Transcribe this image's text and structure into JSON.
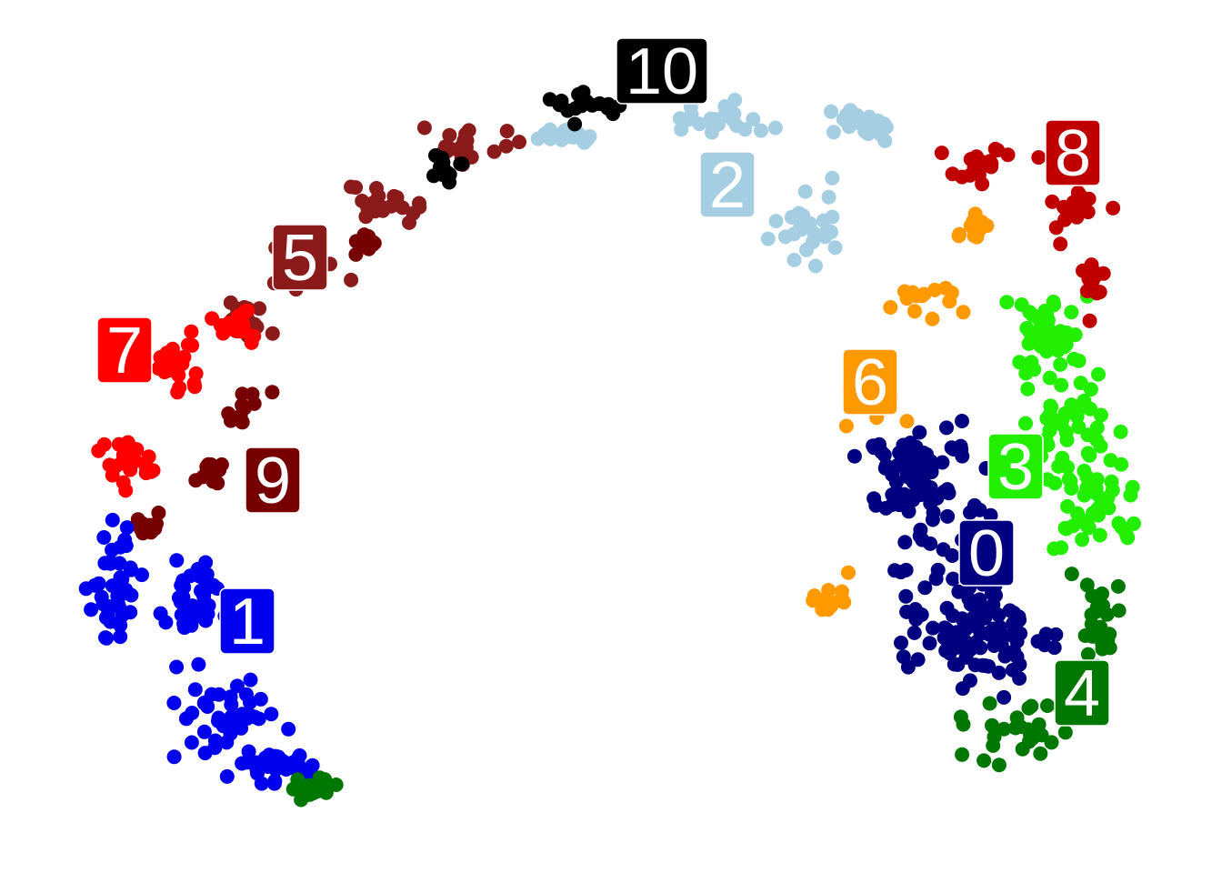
{
  "chart_data": {
    "type": "scatter",
    "title": "",
    "xlabel": "",
    "ylabel": "",
    "grid": false,
    "axes_visible": false,
    "legend": "none",
    "xlim": [
      0,
      1344
    ],
    "ylim": [
      0,
      960
    ],
    "clusters": [
      {
        "label": "0",
        "color": "#000080",
        "label_pos": [
          1085,
          608
        ],
        "n": 200,
        "blobs": [
          [
            1040,
            620,
            75,
            110
          ],
          [
            1080,
            700,
            60,
            45
          ],
          [
            1000,
            520,
            45,
            40
          ]
        ]
      },
      {
        "label": "1",
        "color": "#0000ee",
        "label_pos": [
          272,
          683
        ],
        "n": 160,
        "blobs": [
          [
            125,
            630,
            22,
            70
          ],
          [
            215,
            665,
            35,
            45
          ],
          [
            245,
            790,
            45,
            40
          ],
          [
            300,
            840,
            35,
            15
          ]
        ]
      },
      {
        "label": "2",
        "color": "#a6cee3",
        "label_pos": [
          800,
          203
        ],
        "n": 105,
        "blobs": [
          [
            790,
            130,
            50,
            15
          ],
          [
            890,
            240,
            45,
            40
          ],
          [
            955,
            140,
            35,
            15
          ],
          [
            620,
            150,
            30,
            8
          ]
        ]
      },
      {
        "label": "3",
        "color": "#22ee00",
        "label_pos": [
          1117,
          513
        ],
        "n": 125,
        "blobs": [
          [
            1150,
            370,
            35,
            40
          ],
          [
            1175,
            470,
            45,
            55
          ],
          [
            1200,
            560,
            45,
            50
          ]
        ]
      },
      {
        "label": "4",
        "color": "#007700",
        "label_pos": [
          1190,
          762
        ],
        "n": 85,
        "blobs": [
          [
            1120,
            800,
            55,
            40
          ],
          [
            1210,
            680,
            25,
            45
          ],
          [
            345,
            868,
            18,
            8
          ]
        ]
      },
      {
        "label": "5",
        "color": "#8b1a1a",
        "label_pos": [
          330,
          283
        ],
        "n": 90,
        "blobs": [
          [
            520,
            160,
            45,
            15
          ],
          [
            420,
            220,
            35,
            20
          ],
          [
            330,
            300,
            35,
            30
          ],
          [
            270,
            350,
            22,
            15
          ]
        ]
      },
      {
        "label": "6",
        "color": "#ff9900",
        "label_pos": [
          957,
          420
        ],
        "n": 55,
        "blobs": [
          [
            1010,
            330,
            35,
            25
          ],
          [
            960,
            440,
            30,
            30
          ],
          [
            910,
            655,
            18,
            20
          ],
          [
            1070,
            250,
            25,
            15
          ]
        ]
      },
      {
        "label": "7",
        "color": "#ff0000",
        "label_pos": [
          137,
          385
        ],
        "n": 70,
        "blobs": [
          [
            190,
            400,
            30,
            35
          ],
          [
            140,
            510,
            25,
            30
          ],
          [
            260,
            360,
            20,
            15
          ]
        ]
      },
      {
        "label": "8",
        "color": "#c00000",
        "label_pos": [
          1180,
          168
        ],
        "n": 55,
        "blobs": [
          [
            1090,
            180,
            45,
            20
          ],
          [
            1180,
            230,
            25,
            25
          ],
          [
            1200,
            310,
            12,
            25
          ]
        ]
      },
      {
        "label": "9",
        "color": "#760000",
        "label_pos": [
          300,
          528
        ],
        "n": 45,
        "blobs": [
          [
            265,
            450,
            20,
            25
          ],
          [
            230,
            520,
            20,
            25
          ],
          [
            165,
            580,
            10,
            10
          ],
          [
            400,
            270,
            15,
            12
          ]
        ]
      },
      {
        "label": "10",
        "color": "#000000",
        "label_pos": [
          728,
          78
        ],
        "n": 35,
        "blobs": [
          [
            650,
            110,
            40,
            18
          ],
          [
            490,
            185,
            15,
            10
          ]
        ]
      }
    ]
  }
}
